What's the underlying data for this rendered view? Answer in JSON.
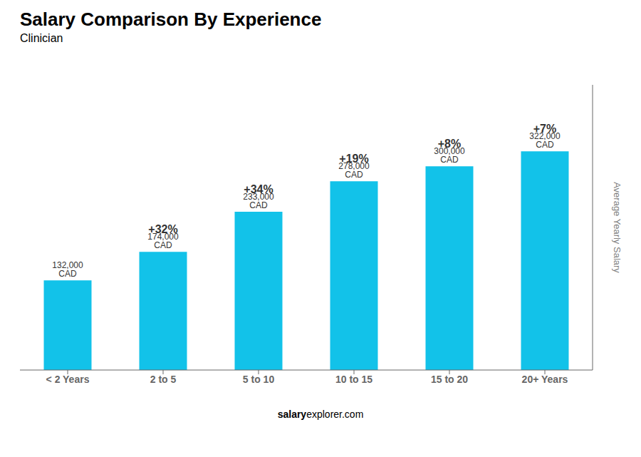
{
  "chart_data": {
    "type": "bar",
    "title": "Salary Comparison By Experience",
    "subtitle": "Clinician",
    "categories": [
      "< 2 Years",
      "2 to 5",
      "5 to 10",
      "10 to 15",
      "15 to 20",
      "20+ Years"
    ],
    "values": [
      132000,
      174000,
      233000,
      278000,
      300000,
      322000
    ],
    "value_labels": [
      "132,000 CAD",
      "174,000 CAD",
      "233,000 CAD",
      "278,000 CAD",
      "300,000 CAD",
      "322,000 CAD"
    ],
    "change_labels": [
      null,
      "+32%",
      "+34%",
      "+19%",
      "+8%",
      "+7%"
    ],
    "color": "#12C2E9",
    "ylabel": "Average Yearly Salary",
    "annotations": [
      "salary",
      "explorer.com"
    ],
    "ylim": [
      0,
      420000
    ],
    "tick_labels": "x",
    "grid": false
  }
}
